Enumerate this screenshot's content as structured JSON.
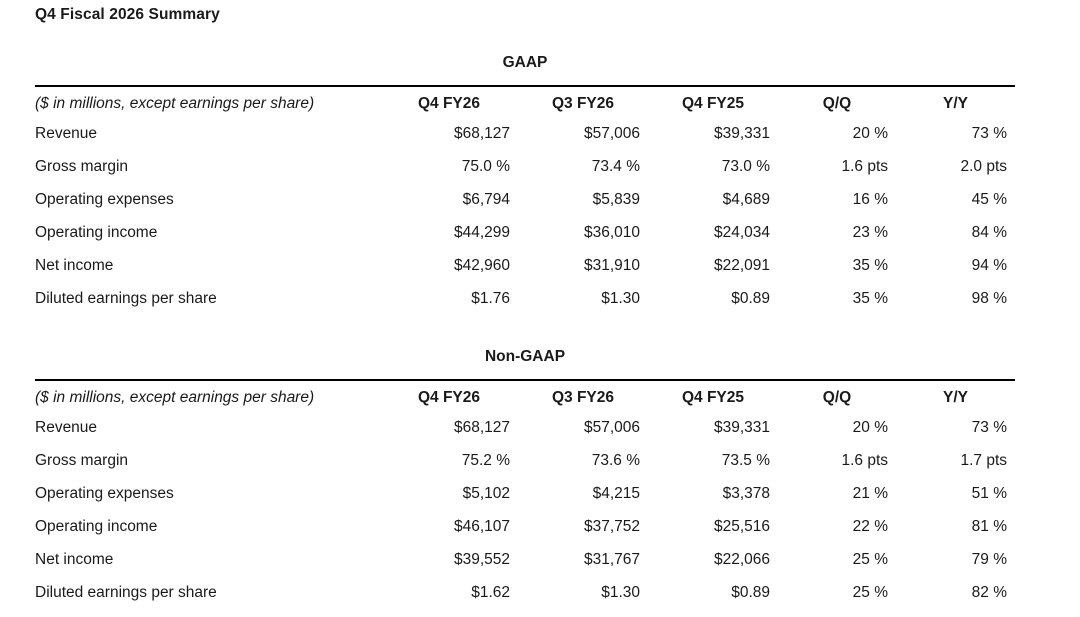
{
  "page_title": "Q4 Fiscal 2026 Summary",
  "colors": {
    "background": "#ffffff",
    "text": "#1a1a1a",
    "rule": "#000000"
  },
  "tables": [
    {
      "caption": "GAAP",
      "unit_note": "($ in millions, except earnings per share)",
      "columns": [
        "Q4 FY26",
        "Q3 FY26",
        "Q4 FY25",
        "Q/Q",
        "Y/Y"
      ],
      "rows": [
        {
          "label": "Revenue",
          "values": [
            "$68,127",
            "$57,006",
            "$39,331",
            "20 %",
            "73 %"
          ]
        },
        {
          "label": "Gross margin",
          "values": [
            "75.0 %",
            "73.4 %",
            "73.0 %",
            "1.6 pts",
            "2.0 pts"
          ]
        },
        {
          "label": "Operating expenses",
          "values": [
            "$6,794",
            "$5,839",
            "$4,689",
            "16 %",
            "45 %"
          ]
        },
        {
          "label": "Operating income",
          "values": [
            "$44,299",
            "$36,010",
            "$24,034",
            "23 %",
            "84 %"
          ]
        },
        {
          "label": "Net income",
          "values": [
            "$42,960",
            "$31,910",
            "$22,091",
            "35 %",
            "94 %"
          ]
        },
        {
          "label": "Diluted earnings per share",
          "values": [
            "$1.76",
            "$1.30",
            "$0.89",
            "35 %",
            "98 %"
          ]
        }
      ]
    },
    {
      "caption": "Non-GAAP",
      "unit_note": "($ in millions, except earnings per share)",
      "columns": [
        "Q4 FY26",
        "Q3 FY26",
        "Q4 FY25",
        "Q/Q",
        "Y/Y"
      ],
      "rows": [
        {
          "label": "Revenue",
          "values": [
            "$68,127",
            "$57,006",
            "$39,331",
            "20 %",
            "73 %"
          ]
        },
        {
          "label": "Gross margin",
          "values": [
            "75.2 %",
            "73.6 %",
            "73.5 %",
            "1.6 pts",
            "1.7 pts"
          ]
        },
        {
          "label": "Operating expenses",
          "values": [
            "$5,102",
            "$4,215",
            "$3,378",
            "21 %",
            "51 %"
          ]
        },
        {
          "label": "Operating income",
          "values": [
            "$46,107",
            "$37,752",
            "$25,516",
            "22 %",
            "81 %"
          ]
        },
        {
          "label": "Net income",
          "values": [
            "$39,552",
            "$31,767",
            "$22,066",
            "25 %",
            "79 %"
          ]
        },
        {
          "label": "Diluted earnings per share",
          "values": [
            "$1.62",
            "$1.30",
            "$0.89",
            "25 %",
            "82 %"
          ]
        }
      ]
    }
  ]
}
